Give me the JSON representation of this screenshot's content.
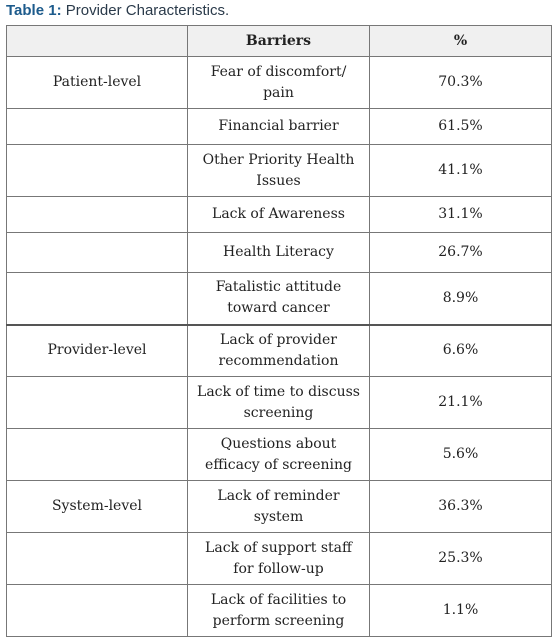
{
  "caption": {
    "label": "Table 1:",
    "text": " Provider Characteristics."
  },
  "headers": {
    "col1": "",
    "col2": "Barriers",
    "col3": "%"
  },
  "rows": [
    {
      "level": "Patient-level",
      "barrier": "Fear of discomfort/ pain",
      "pct": "70.3%"
    },
    {
      "level": "",
      "barrier": "Financial barrier",
      "pct": "61.5%"
    },
    {
      "level": "",
      "barrier": "Other Priority Health Issues",
      "pct": "41.1%"
    },
    {
      "level": "",
      "barrier": "Lack of Awareness",
      "pct": "31.1%"
    },
    {
      "level": "",
      "barrier": "Health Literacy",
      "pct": "26.7%"
    },
    {
      "level": "",
      "barrier": "Fatalistic attitude toward cancer",
      "pct": "8.9%"
    },
    {
      "level": "Provider-level",
      "barrier": "Lack of provider recommendation",
      "pct": "6.6%"
    },
    {
      "level": "",
      "barrier": "Lack of time to discuss screening",
      "pct": "21.1%"
    },
    {
      "level": "",
      "barrier": "Questions about efficacy of screening",
      "pct": "5.6%"
    },
    {
      "level": "System-level",
      "barrier": "Lack of reminder system",
      "pct": "36.3%"
    },
    {
      "level": "",
      "barrier": "Lack of support staff for follow-up",
      "pct": "25.3%"
    },
    {
      "level": "",
      "barrier": "Lack of facilities to perform screening",
      "pct": "1.1%"
    }
  ]
}
